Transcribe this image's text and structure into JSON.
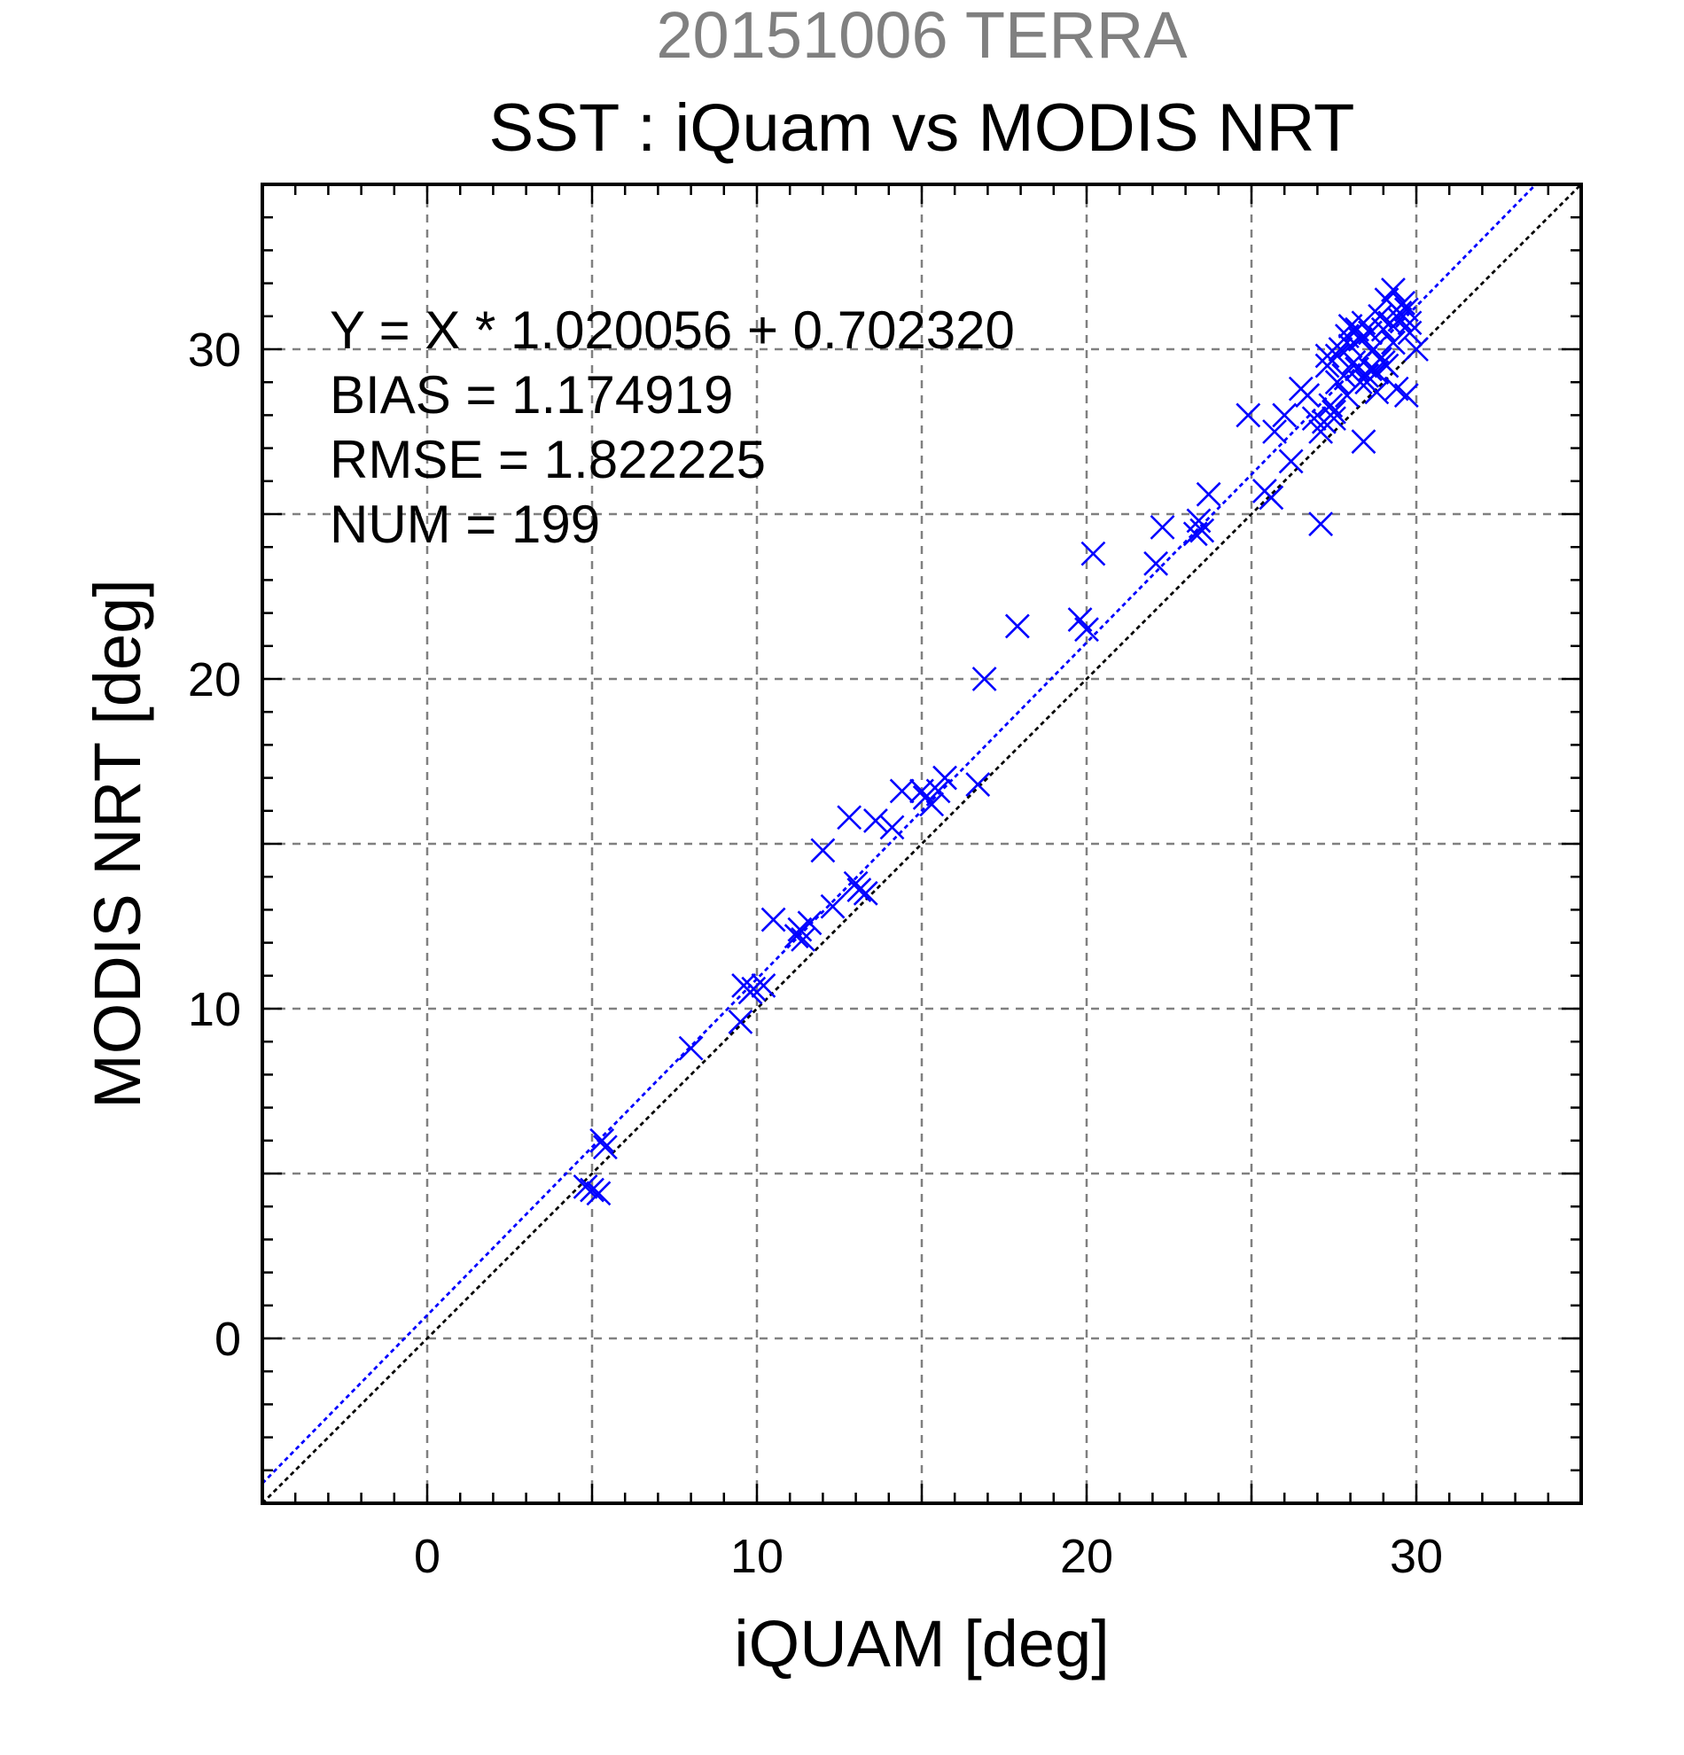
{
  "chart_data": {
    "type": "scatter",
    "supertitle": "20151006 TERRA",
    "title": "SST : iQuam vs MODIS NRT",
    "xlabel": "iQUAM [deg]",
    "ylabel": "MODIS NRT [deg]",
    "xlim": [
      -5,
      35
    ],
    "ylim": [
      -5,
      35
    ],
    "xticks": [
      0,
      10,
      20,
      30
    ],
    "yticks": [
      0,
      10,
      20,
      30
    ],
    "minor_step": 1,
    "grid_step": 5,
    "grid": true,
    "colors": {
      "points": "#0000ff",
      "fit_line": "#0000ff",
      "identity_line": "#000000",
      "supertitle": "#808080"
    },
    "annotations": [
      "Y = X * 1.020056 + 0.702320",
      "BIAS = 1.174919",
      "RMSE = 1.822225",
      "NUM = 199"
    ],
    "fit": {
      "slope": 1.020056,
      "intercept": 0.70232
    },
    "identity": {
      "slope": 1,
      "intercept": 0
    },
    "series": [
      {
        "marker": "x",
        "x": [
          4.8,
          5.0,
          5.2,
          5.3,
          5.4,
          8.0,
          9.5,
          9.6,
          9.8,
          9.9,
          10.2,
          10.5,
          11.2,
          11.3,
          11.4,
          11.6,
          12.0,
          12.3,
          12.8,
          13.0,
          13.1,
          13.3,
          13.6,
          14.1,
          14.4,
          15.0,
          15.1,
          15.3,
          15.5,
          15.7,
          16.7,
          16.9,
          17.9,
          19.8,
          20.0,
          20.2,
          22.1,
          22.3,
          23.3,
          23.4,
          23.5,
          23.7,
          24.9,
          25.4,
          25.6,
          25.7,
          26.0,
          26.2,
          26.5,
          26.7,
          26.9,
          27.1,
          27.1,
          27.2,
          27.3,
          27.4,
          27.5,
          27.6,
          27.7,
          27.8,
          27.9,
          28.0,
          28.1,
          28.2,
          28.3,
          28.4,
          28.5,
          28.6,
          28.7,
          28.8,
          28.9,
          29.0,
          29.1,
          29.2,
          29.3,
          29.4,
          29.5,
          29.6,
          29.7,
          29.8,
          30.0,
          27.3,
          27.6,
          27.9,
          28.2,
          28.5,
          28.8,
          29.1,
          29.4,
          29.7,
          27.5,
          28.0,
          28.4,
          28.9,
          29.3,
          28.3,
          28.6,
          29.0,
          29.5,
          29.8
        ],
        "y": [
          4.6,
          4.5,
          4.4,
          6.0,
          5.8,
          8.8,
          9.6,
          10.7,
          10.5,
          10.6,
          10.7,
          12.7,
          12.2,
          12.4,
          12.1,
          12.6,
          14.8,
          13.1,
          15.8,
          13.8,
          13.6,
          13.5,
          15.7,
          15.5,
          16.6,
          16.6,
          16.4,
          16.2,
          16.6,
          17.0,
          16.8,
          20.0,
          21.6,
          21.8,
          21.5,
          23.8,
          23.5,
          24.6,
          24.4,
          24.8,
          24.5,
          25.6,
          28.0,
          25.7,
          25.5,
          27.5,
          28.0,
          26.6,
          28.8,
          28.6,
          27.9,
          24.7,
          27.5,
          27.8,
          29.5,
          28.3,
          27.9,
          29.8,
          30.0,
          29.2,
          30.4,
          30.1,
          29.6,
          30.6,
          30.3,
          27.2,
          29.0,
          30.5,
          30.0,
          29.3,
          31.0,
          30.6,
          31.5,
          30.8,
          31.8,
          31.2,
          30.9,
          31.4,
          31.2,
          30.8,
          30.0,
          29.8,
          29.0,
          28.6,
          29.4,
          29.2,
          28.7,
          29.5,
          28.8,
          28.6,
          28.1,
          30.7,
          30.8,
          29.7,
          30.2,
          29.0,
          29.4,
          29.6,
          31.1,
          30.5
        ]
      }
    ]
  }
}
